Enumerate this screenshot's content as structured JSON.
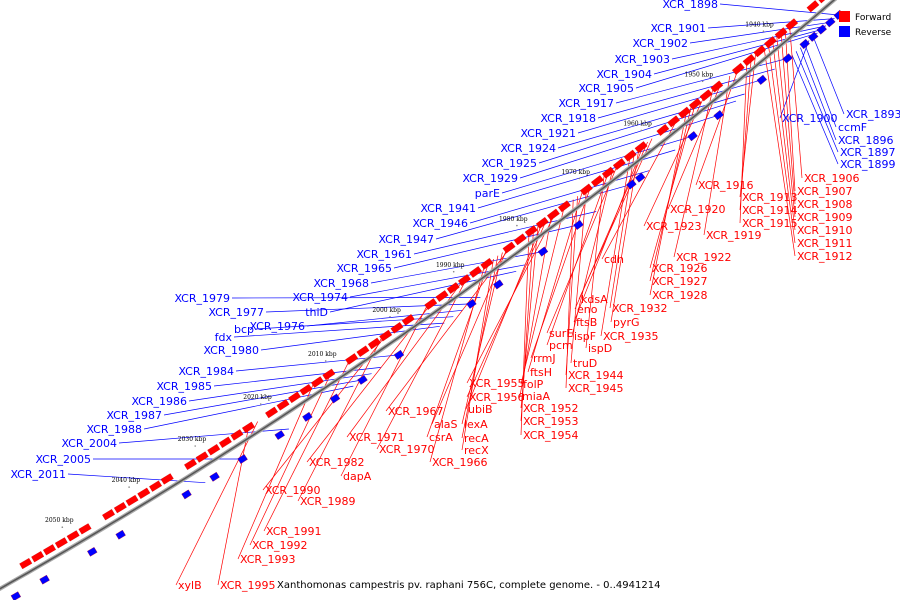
{
  "legend": {
    "forward": {
      "label": "Forward",
      "color": "#ff0000"
    },
    "reverse": {
      "label": "Reverse",
      "color": "#0000ff"
    }
  },
  "caption": "Xanthomonas campestris pv. raphani 756C, complete genome. - 0..4941214",
  "kbp_ticks": [
    "1930 kbp",
    "1940 kbp",
    "1950 kbp",
    "1960 kbp",
    "1970 kbp",
    "1980 kbp",
    "1990 kbp",
    "2000 kbp",
    "2010 kbp",
    "2020 kbp",
    "2030 kbp",
    "2040 kbp",
    "2050 kbp"
  ],
  "reverse_labels": [
    "XCR_1898",
    "XCR_1901",
    "XCR_1902",
    "XCR_1903",
    "XCR_1904",
    "XCR_1905",
    "XCR_1917",
    "XCR_1918",
    "XCR_1921",
    "XCR_1924",
    "XCR_1925",
    "XCR_1929",
    "parE",
    "XCR_1941",
    "XCR_1946",
    "XCR_1947",
    "XCR_1961",
    "XCR_1965",
    "XCR_1968",
    "XCR_1974",
    "thiD",
    "XCR_1979",
    "XCR_1977",
    "XCR_1976",
    "bcp",
    "fdx",
    "XCR_1980",
    "XCR_1984",
    "XCR_1985",
    "XCR_1986",
    "XCR_1987",
    "XCR_1988",
    "XCR_2004",
    "XCR_2005",
    "XCR_2011",
    "XCR_1893",
    "XCR_1900",
    "ccmF",
    "XCR_1896",
    "XCR_1897",
    "XCR_1899"
  ],
  "forward_labels": [
    "XCR_1906",
    "XCR_1907",
    "XCR_1908",
    "XCR_1909",
    "XCR_1910",
    "XCR_1911",
    "XCR_1912",
    "XCR_1913",
    "XCR_1914",
    "XCR_1915",
    "XCR_1916",
    "XCR_1919",
    "XCR_1920",
    "XCR_1922",
    "XCR_1923",
    "XCR_1926",
    "XCR_1927",
    "XCR_1928",
    "cdh",
    "kdsA",
    "eno",
    "ftsB",
    "pyrG",
    "XCR_1932",
    "XCR_1935",
    "surE",
    "ispF",
    "pcm",
    "ispD",
    "rrmJ",
    "truD",
    "ftsH",
    "XCR_1944",
    "XCR_1945",
    "folP",
    "XCR_1955",
    "miaA",
    "XCR_1956",
    "ubiB",
    "XCR_1952",
    "XCR_1953",
    "XCR_1954",
    "XCR_1967",
    "alaS",
    "lexA",
    "recA",
    "recX",
    "csrA",
    "XCR_1966",
    "XCR_1970",
    "XCR_1971",
    "XCR_1982",
    "dapA",
    "XCR_1990",
    "XCR_1989",
    "XCR_1991",
    "XCR_1992",
    "XCR_1993",
    "xylB",
    "XCR_1995"
  ]
}
